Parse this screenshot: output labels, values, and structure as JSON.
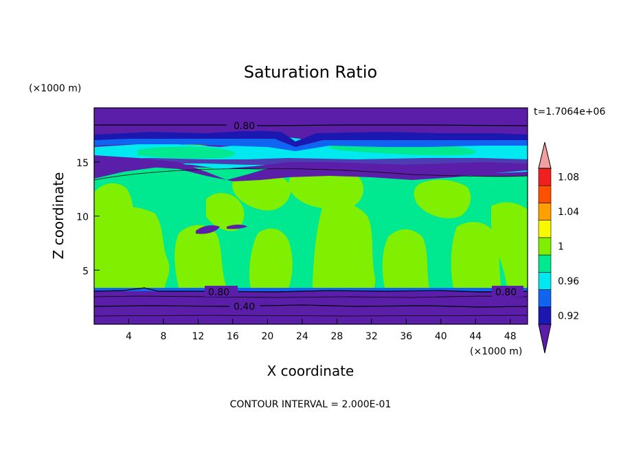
{
  "chart_data": {
    "type": "heatmap",
    "title": "Saturation Ratio",
    "xlabel": "X coordinate",
    "ylabel": "Z coordinate",
    "x_units": "(×1000 m)",
    "y_units": "(×1000 m)",
    "xlim": [
      0,
      50
    ],
    "ylim": [
      0,
      20
    ],
    "x_ticks": [
      4,
      8,
      12,
      16,
      20,
      24,
      28,
      32,
      36,
      40,
      44,
      48
    ],
    "y_ticks": [
      5,
      10,
      15
    ],
    "time_label": "t=1.7064e+06",
    "footer": "CONTOUR INTERVAL = 2.000E-01",
    "contour_labels": [
      "0.80",
      "0.80",
      "0.40",
      "0.80"
    ],
    "colorbar": {
      "levels": [
        0.92,
        0.94,
        0.96,
        0.98,
        1.0,
        1.02,
        1.04,
        1.06,
        1.08,
        1.1
      ],
      "tick_labels": [
        "0.92",
        "0.96",
        "1",
        "1.04",
        "1.08"
      ],
      "colors": [
        "#5a1ea8",
        "#1a18b0",
        "#1064f0",
        "#00e8f0",
        "#00e890",
        "#80f000",
        "#f8f800",
        "#ffa000",
        "#ff5000",
        "#f02020",
        "#f0a0a0"
      ],
      "extend": "both"
    },
    "z_profile": [
      {
        "z_range": [
          0,
          3.5
        ],
        "value": "< 0.92"
      },
      {
        "z_range": [
          3.5,
          13.5
        ],
        "value": "0.98 – 1.02"
      },
      {
        "z_range": [
          13.5,
          17.2
        ],
        "value": "0.92 – 0.98"
      },
      {
        "z_range": [
          17.2,
          20
        ],
        "value": "< 0.92"
      }
    ]
  }
}
